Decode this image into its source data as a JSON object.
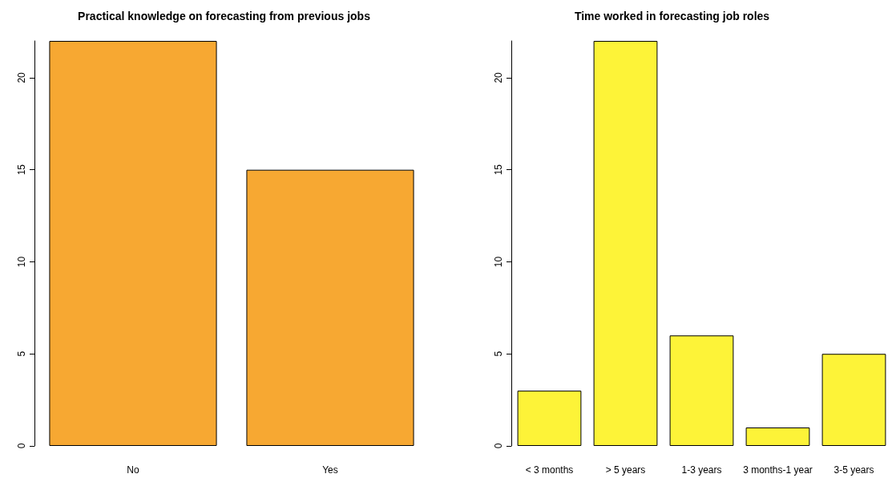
{
  "chart_data": [
    {
      "type": "bar",
      "title": "Practical knowledge on forecasting from previous jobs",
      "categories": [
        "No",
        "Yes"
      ],
      "values": [
        22,
        15
      ],
      "color": "#f7a832",
      "ylim": [
        0,
        22
      ],
      "yticks": [
        0,
        5,
        10,
        15,
        20
      ]
    },
    {
      "type": "bar",
      "title": "Time worked in forecasting job roles",
      "categories": [
        "< 3 months",
        "> 5 years",
        "1-3 years",
        "3 months-1 year",
        "3-5 years"
      ],
      "values": [
        3,
        22,
        6,
        1,
        5
      ],
      "color": "#fdf338",
      "ylim": [
        0,
        22
      ],
      "yticks": [
        0,
        5,
        10,
        15,
        20
      ]
    }
  ]
}
